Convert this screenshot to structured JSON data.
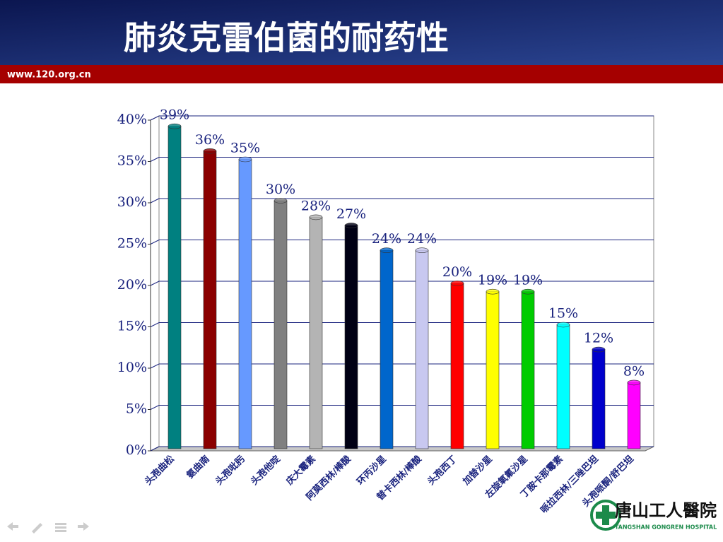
{
  "header": {
    "title": "肺炎克雷伯菌的耐药性",
    "site": "www.120.org.cn"
  },
  "logo": {
    "name": "唐山工人醫院",
    "english": "TANGSHAN GONGREN HOSPITAL"
  },
  "chart_data": {
    "type": "bar",
    "categories": [
      "头孢曲松",
      "氨曲南",
      "头孢吡肟",
      "头孢他啶",
      "庆大霉素",
      "阿莫西林/棒酸",
      "环丙沙星",
      "替卡西林/棒酸",
      "头孢西丁",
      "加替沙星",
      "左旋氧氟沙星",
      "丁胺卡那霉素",
      "哌拉西林/三唑巴坦",
      "头孢哌酮/舒巴坦"
    ],
    "values": [
      39,
      36,
      35,
      30,
      28,
      27,
      24,
      24,
      20,
      19,
      19,
      15,
      12,
      8
    ],
    "value_labels": [
      "39%",
      "36%",
      "35%",
      "30%",
      "28%",
      "27%",
      "24%",
      "24%",
      "20%",
      "19%",
      "19%",
      "15%",
      "12%",
      "8%"
    ],
    "colors": [
      "#008080",
      "#8b0000",
      "#6699ff",
      "#808080",
      "#b4b4b4",
      "#000014",
      "#0066cc",
      "#c8c8f0",
      "#ff0000",
      "#ffff00",
      "#00cc00",
      "#00ffff",
      "#0000cc",
      "#ff00ff"
    ],
    "ylim": [
      0,
      40
    ],
    "yticks": [
      {
        "value": 0,
        "label": "0%"
      },
      {
        "value": 5,
        "label": "5%"
      },
      {
        "value": 10,
        "label": "10%"
      },
      {
        "value": 15,
        "label": "15%"
      },
      {
        "value": 20,
        "label": "20%"
      },
      {
        "value": 25,
        "label": "25%"
      },
      {
        "value": 30,
        "label": "30%"
      },
      {
        "value": 35,
        "label": "35%"
      },
      {
        "value": 40,
        "label": "40%"
      }
    ],
    "grid": true
  }
}
